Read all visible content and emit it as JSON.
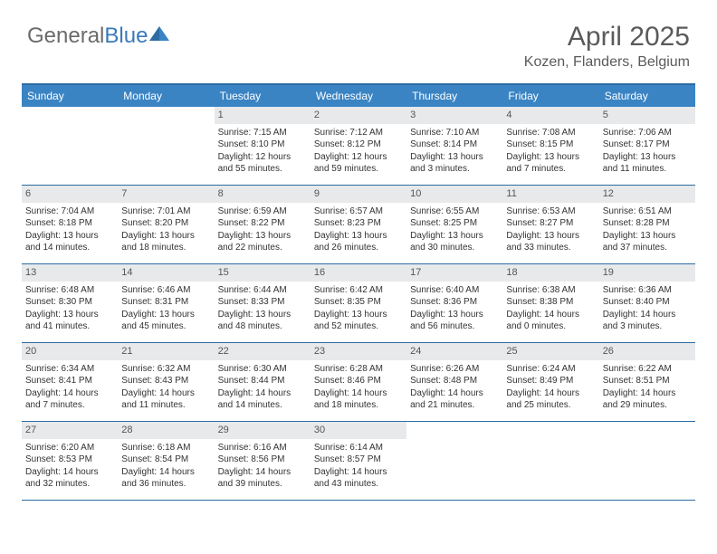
{
  "logo": {
    "text1": "General",
    "text2": "Blue"
  },
  "header": {
    "month_title": "April 2025",
    "location": "Kozen, Flanders, Belgium"
  },
  "colors": {
    "header_bg": "#3a84c4",
    "border": "#2b6ca3",
    "daynum_bg": "#e7e9eb",
    "text": "#333333",
    "logo_gray": "#6b6b6b",
    "logo_blue": "#3a7ab8"
  },
  "weekdays": [
    "Sunday",
    "Monday",
    "Tuesday",
    "Wednesday",
    "Thursday",
    "Friday",
    "Saturday"
  ],
  "weeks": [
    [
      null,
      null,
      {
        "n": "1",
        "sr": "Sunrise: 7:15 AM",
        "ss": "Sunset: 8:10 PM",
        "dl": "Daylight: 12 hours and 55 minutes."
      },
      {
        "n": "2",
        "sr": "Sunrise: 7:12 AM",
        "ss": "Sunset: 8:12 PM",
        "dl": "Daylight: 12 hours and 59 minutes."
      },
      {
        "n": "3",
        "sr": "Sunrise: 7:10 AM",
        "ss": "Sunset: 8:14 PM",
        "dl": "Daylight: 13 hours and 3 minutes."
      },
      {
        "n": "4",
        "sr": "Sunrise: 7:08 AM",
        "ss": "Sunset: 8:15 PM",
        "dl": "Daylight: 13 hours and 7 minutes."
      },
      {
        "n": "5",
        "sr": "Sunrise: 7:06 AM",
        "ss": "Sunset: 8:17 PM",
        "dl": "Daylight: 13 hours and 11 minutes."
      }
    ],
    [
      {
        "n": "6",
        "sr": "Sunrise: 7:04 AM",
        "ss": "Sunset: 8:18 PM",
        "dl": "Daylight: 13 hours and 14 minutes."
      },
      {
        "n": "7",
        "sr": "Sunrise: 7:01 AM",
        "ss": "Sunset: 8:20 PM",
        "dl": "Daylight: 13 hours and 18 minutes."
      },
      {
        "n": "8",
        "sr": "Sunrise: 6:59 AM",
        "ss": "Sunset: 8:22 PM",
        "dl": "Daylight: 13 hours and 22 minutes."
      },
      {
        "n": "9",
        "sr": "Sunrise: 6:57 AM",
        "ss": "Sunset: 8:23 PM",
        "dl": "Daylight: 13 hours and 26 minutes."
      },
      {
        "n": "10",
        "sr": "Sunrise: 6:55 AM",
        "ss": "Sunset: 8:25 PM",
        "dl": "Daylight: 13 hours and 30 minutes."
      },
      {
        "n": "11",
        "sr": "Sunrise: 6:53 AM",
        "ss": "Sunset: 8:27 PM",
        "dl": "Daylight: 13 hours and 33 minutes."
      },
      {
        "n": "12",
        "sr": "Sunrise: 6:51 AM",
        "ss": "Sunset: 8:28 PM",
        "dl": "Daylight: 13 hours and 37 minutes."
      }
    ],
    [
      {
        "n": "13",
        "sr": "Sunrise: 6:48 AM",
        "ss": "Sunset: 8:30 PM",
        "dl": "Daylight: 13 hours and 41 minutes."
      },
      {
        "n": "14",
        "sr": "Sunrise: 6:46 AM",
        "ss": "Sunset: 8:31 PM",
        "dl": "Daylight: 13 hours and 45 minutes."
      },
      {
        "n": "15",
        "sr": "Sunrise: 6:44 AM",
        "ss": "Sunset: 8:33 PM",
        "dl": "Daylight: 13 hours and 48 minutes."
      },
      {
        "n": "16",
        "sr": "Sunrise: 6:42 AM",
        "ss": "Sunset: 8:35 PM",
        "dl": "Daylight: 13 hours and 52 minutes."
      },
      {
        "n": "17",
        "sr": "Sunrise: 6:40 AM",
        "ss": "Sunset: 8:36 PM",
        "dl": "Daylight: 13 hours and 56 minutes."
      },
      {
        "n": "18",
        "sr": "Sunrise: 6:38 AM",
        "ss": "Sunset: 8:38 PM",
        "dl": "Daylight: 14 hours and 0 minutes."
      },
      {
        "n": "19",
        "sr": "Sunrise: 6:36 AM",
        "ss": "Sunset: 8:40 PM",
        "dl": "Daylight: 14 hours and 3 minutes."
      }
    ],
    [
      {
        "n": "20",
        "sr": "Sunrise: 6:34 AM",
        "ss": "Sunset: 8:41 PM",
        "dl": "Daylight: 14 hours and 7 minutes."
      },
      {
        "n": "21",
        "sr": "Sunrise: 6:32 AM",
        "ss": "Sunset: 8:43 PM",
        "dl": "Daylight: 14 hours and 11 minutes."
      },
      {
        "n": "22",
        "sr": "Sunrise: 6:30 AM",
        "ss": "Sunset: 8:44 PM",
        "dl": "Daylight: 14 hours and 14 minutes."
      },
      {
        "n": "23",
        "sr": "Sunrise: 6:28 AM",
        "ss": "Sunset: 8:46 PM",
        "dl": "Daylight: 14 hours and 18 minutes."
      },
      {
        "n": "24",
        "sr": "Sunrise: 6:26 AM",
        "ss": "Sunset: 8:48 PM",
        "dl": "Daylight: 14 hours and 21 minutes."
      },
      {
        "n": "25",
        "sr": "Sunrise: 6:24 AM",
        "ss": "Sunset: 8:49 PM",
        "dl": "Daylight: 14 hours and 25 minutes."
      },
      {
        "n": "26",
        "sr": "Sunrise: 6:22 AM",
        "ss": "Sunset: 8:51 PM",
        "dl": "Daylight: 14 hours and 29 minutes."
      }
    ],
    [
      {
        "n": "27",
        "sr": "Sunrise: 6:20 AM",
        "ss": "Sunset: 8:53 PM",
        "dl": "Daylight: 14 hours and 32 minutes."
      },
      {
        "n": "28",
        "sr": "Sunrise: 6:18 AM",
        "ss": "Sunset: 8:54 PM",
        "dl": "Daylight: 14 hours and 36 minutes."
      },
      {
        "n": "29",
        "sr": "Sunrise: 6:16 AM",
        "ss": "Sunset: 8:56 PM",
        "dl": "Daylight: 14 hours and 39 minutes."
      },
      {
        "n": "30",
        "sr": "Sunrise: 6:14 AM",
        "ss": "Sunset: 8:57 PM",
        "dl": "Daylight: 14 hours and 43 minutes."
      },
      null,
      null,
      null
    ]
  ]
}
